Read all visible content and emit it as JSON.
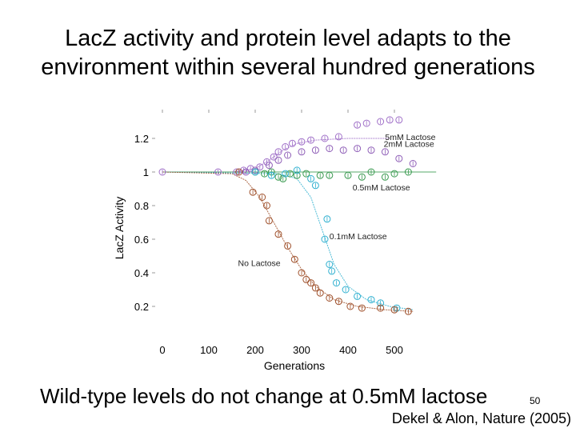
{
  "title": {
    "line1": "LacZ activity and protein level adapts to the",
    "line2": "environment within several hundred generations"
  },
  "caption": "Wild-type levels do not change at 0.5mM lactose",
  "slide_number": "50",
  "citation": "Dekel & Alon, Nature (2005)",
  "chart_data": {
    "type": "scatter",
    "xlabel": "Generations",
    "ylabel": "LacZ Activity",
    "xlim": [
      -10,
      600
    ],
    "ylim": [
      0.13,
      1.37
    ],
    "xticks": [
      0,
      100,
      200,
      300,
      400,
      500
    ],
    "yticks": [
      0.2,
      0.4,
      0.6,
      0.8,
      1,
      1.2
    ],
    "ytick_labels": [
      "0.2",
      "0.4",
      "0.6",
      "0.8",
      "1",
      "1.2"
    ],
    "grid": false,
    "series": [
      {
        "name": "5mM Lactose",
        "color": "#a070c8",
        "marker": "circle",
        "points": [
          [
            0,
            1.0
          ],
          [
            120,
            1.0
          ],
          [
            160,
            1.0
          ],
          [
            175,
            1.01
          ],
          [
            190,
            1.02
          ],
          [
            210,
            1.03
          ],
          [
            225,
            1.06
          ],
          [
            240,
            1.09
          ],
          [
            250,
            1.12
          ],
          [
            265,
            1.15
          ],
          [
            280,
            1.17
          ],
          [
            300,
            1.18
          ],
          [
            320,
            1.19
          ],
          [
            350,
            1.2
          ],
          [
            380,
            1.21
          ],
          [
            420,
            1.28
          ],
          [
            440,
            1.29
          ],
          [
            470,
            1.3
          ],
          [
            490,
            1.31
          ],
          [
            510,
            1.31
          ]
        ],
        "fit": [
          [
            0,
            1.0
          ],
          [
            150,
            1.0
          ],
          [
            200,
            1.02
          ],
          [
            230,
            1.07
          ],
          [
            260,
            1.13
          ],
          [
            290,
            1.17
          ],
          [
            330,
            1.19
          ],
          [
            400,
            1.2
          ],
          [
            490,
            1.2
          ]
        ]
      },
      {
        "name": "2mM Lactose",
        "color": "#9060b8",
        "marker": "circle",
        "points": [
          [
            180,
            1.0
          ],
          [
            200,
            1.01
          ],
          [
            230,
            1.04
          ],
          [
            250,
            1.07
          ],
          [
            270,
            1.1
          ],
          [
            300,
            1.12
          ],
          [
            330,
            1.13
          ],
          [
            360,
            1.14
          ],
          [
            390,
            1.13
          ],
          [
            420,
            1.14
          ],
          [
            450,
            1.13
          ],
          [
            480,
            1.12
          ],
          [
            510,
            1.08
          ],
          [
            540,
            1.05
          ]
        ]
      },
      {
        "name": "0.5mM Lactose",
        "color": "#3a9a50",
        "marker": "circle",
        "points": [
          [
            200,
            1.0
          ],
          [
            220,
            0.99
          ],
          [
            235,
            1.0
          ],
          [
            250,
            0.97
          ],
          [
            260,
            0.96
          ],
          [
            275,
            0.99
          ],
          [
            290,
            0.98
          ],
          [
            310,
            0.99
          ],
          [
            340,
            0.98
          ],
          [
            360,
            0.98
          ],
          [
            400,
            0.98
          ],
          [
            430,
            0.97
          ],
          [
            450,
            1.0
          ],
          [
            480,
            0.97
          ],
          [
            500,
            0.99
          ],
          [
            530,
            1.0
          ]
        ],
        "fit": [
          [
            0,
            1.0
          ],
          [
            590,
            1.0
          ]
        ]
      },
      {
        "name": "0.1mM Lactose",
        "color": "#30b0d0",
        "marker": "circle",
        "points": [
          [
            200,
            1.0
          ],
          [
            235,
            0.98
          ],
          [
            265,
            0.99
          ],
          [
            290,
            1.01
          ],
          [
            320,
            0.96
          ],
          [
            330,
            0.92
          ],
          [
            355,
            0.72
          ],
          [
            350,
            0.6
          ],
          [
            360,
            0.45
          ],
          [
            365,
            0.41
          ],
          [
            375,
            0.34
          ],
          [
            395,
            0.3
          ],
          [
            420,
            0.26
          ],
          [
            450,
            0.24
          ],
          [
            470,
            0.22
          ],
          [
            505,
            0.19
          ]
        ],
        "fit": [
          [
            0,
            1.0
          ],
          [
            250,
            0.99
          ],
          [
            290,
            0.96
          ],
          [
            320,
            0.85
          ],
          [
            345,
            0.65
          ],
          [
            370,
            0.45
          ],
          [
            400,
            0.32
          ],
          [
            440,
            0.24
          ],
          [
            490,
            0.2
          ],
          [
            540,
            0.18
          ]
        ]
      },
      {
        "name": "No Lactose",
        "color": "#a0522d",
        "marker": "circle",
        "points": [
          [
            165,
            1.0
          ],
          [
            195,
            0.88
          ],
          [
            215,
            0.85
          ],
          [
            225,
            0.8
          ],
          [
            230,
            0.71
          ],
          [
            250,
            0.63
          ],
          [
            270,
            0.56
          ],
          [
            285,
            0.48
          ],
          [
            300,
            0.4
          ],
          [
            310,
            0.36
          ],
          [
            320,
            0.34
          ],
          [
            330,
            0.31
          ],
          [
            340,
            0.28
          ],
          [
            360,
            0.25
          ],
          [
            380,
            0.23
          ],
          [
            405,
            0.2
          ],
          [
            430,
            0.19
          ],
          [
            470,
            0.19
          ],
          [
            500,
            0.18
          ],
          [
            530,
            0.17
          ]
        ],
        "fit": [
          [
            0,
            1.0
          ],
          [
            150,
            0.99
          ],
          [
            180,
            0.95
          ],
          [
            210,
            0.85
          ],
          [
            240,
            0.7
          ],
          [
            270,
            0.55
          ],
          [
            300,
            0.42
          ],
          [
            330,
            0.32
          ],
          [
            370,
            0.24
          ],
          [
            420,
            0.2
          ],
          [
            480,
            0.18
          ],
          [
            540,
            0.17
          ]
        ]
      }
    ],
    "annotations": [
      {
        "text": "5mM Lactose",
        "x": 480,
        "y": 1.19
      },
      {
        "text": "2mM Lactose",
        "x": 477,
        "y": 1.15
      },
      {
        "text": "0.5mM Lactose",
        "x": 410,
        "y": 0.89
      },
      {
        "text": "0.1mM Lactose",
        "x": 360,
        "y": 0.6
      },
      {
        "text": "No Lactose",
        "x": 163,
        "y": 0.44
      }
    ]
  }
}
